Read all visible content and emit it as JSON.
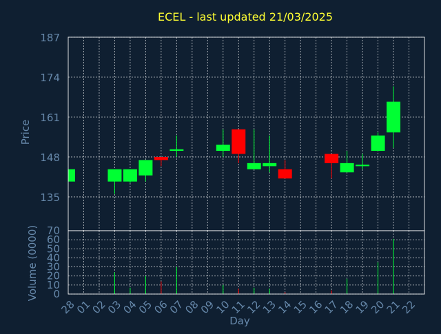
{
  "chart_data": {
    "type": "candlestick",
    "title": "ECEL - last updated 21/03/2025",
    "xlabel": "Day",
    "price_ylabel": "Price",
    "volume_ylabel": "Volume (0000)",
    "x_ticks": [
      "28",
      "01",
      "02",
      "03",
      "04",
      "05",
      "06",
      "07",
      "08",
      "09",
      "10",
      "11",
      "12",
      "13",
      "14",
      "15",
      "16",
      "17",
      "18",
      "19",
      "20",
      "21",
      "22"
    ],
    "price_ylim": [
      124,
      187
    ],
    "price_yticks": [
      135,
      148,
      161,
      174,
      187
    ],
    "volume_ylim": [
      0,
      70
    ],
    "volume_yticks": [
      0,
      10,
      20,
      30,
      40,
      50,
      60,
      70
    ],
    "grid": true,
    "colors": {
      "background": "#0f1f31",
      "plot_border": "#ffffff",
      "grid": "#ffffff",
      "title": "#ffff33",
      "axis_text": "#6688aa",
      "up": "#00ff33",
      "down": "#ff0000"
    },
    "candles": [
      {
        "day": "28",
        "open": 140,
        "high": 144,
        "low": 140,
        "close": 144,
        "volume": 0
      },
      {
        "day": "03",
        "open": 140,
        "high": 144,
        "low": 136,
        "close": 144,
        "volume": 24
      },
      {
        "day": "04",
        "open": 140,
        "high": 144,
        "low": 139.5,
        "close": 144,
        "volume": 7
      },
      {
        "day": "05",
        "open": 142,
        "high": 147,
        "low": 140,
        "close": 147,
        "volume": 20
      },
      {
        "day": "06",
        "open": 148,
        "high": 148,
        "low": 145,
        "close": 147,
        "volume": 14
      },
      {
        "day": "07",
        "open": 150,
        "high": 155,
        "low": 148,
        "close": 150.5,
        "volume": 30
      },
      {
        "day": "10",
        "open": 150,
        "high": 157,
        "low": 148,
        "close": 152,
        "volume": 10
      },
      {
        "day": "11",
        "open": 157,
        "high": 157,
        "low": 146,
        "close": 149,
        "volume": 6
      },
      {
        "day": "12",
        "open": 144,
        "high": 157,
        "low": 144,
        "close": 146,
        "volume": 7
      },
      {
        "day": "13",
        "open": 145,
        "high": 155,
        "low": 143,
        "close": 146,
        "volume": 6
      },
      {
        "day": "14",
        "open": 144,
        "high": 147,
        "low": 141,
        "close": 141,
        "volume": 2
      },
      {
        "day": "17",
        "open": 149,
        "high": 149,
        "low": 141,
        "close": 146,
        "volume": 4
      },
      {
        "day": "18",
        "open": 143,
        "high": 150,
        "low": 143,
        "close": 146,
        "volume": 17
      },
      {
        "day": "19",
        "open": 145,
        "high": 149,
        "low": 144,
        "close": 145.5,
        "volume": 0
      },
      {
        "day": "20",
        "open": 150,
        "high": 156,
        "low": 150,
        "close": 155,
        "volume": 35
      },
      {
        "day": "21",
        "open": 156,
        "high": 171,
        "low": 151,
        "close": 166,
        "volume": 61
      }
    ]
  }
}
